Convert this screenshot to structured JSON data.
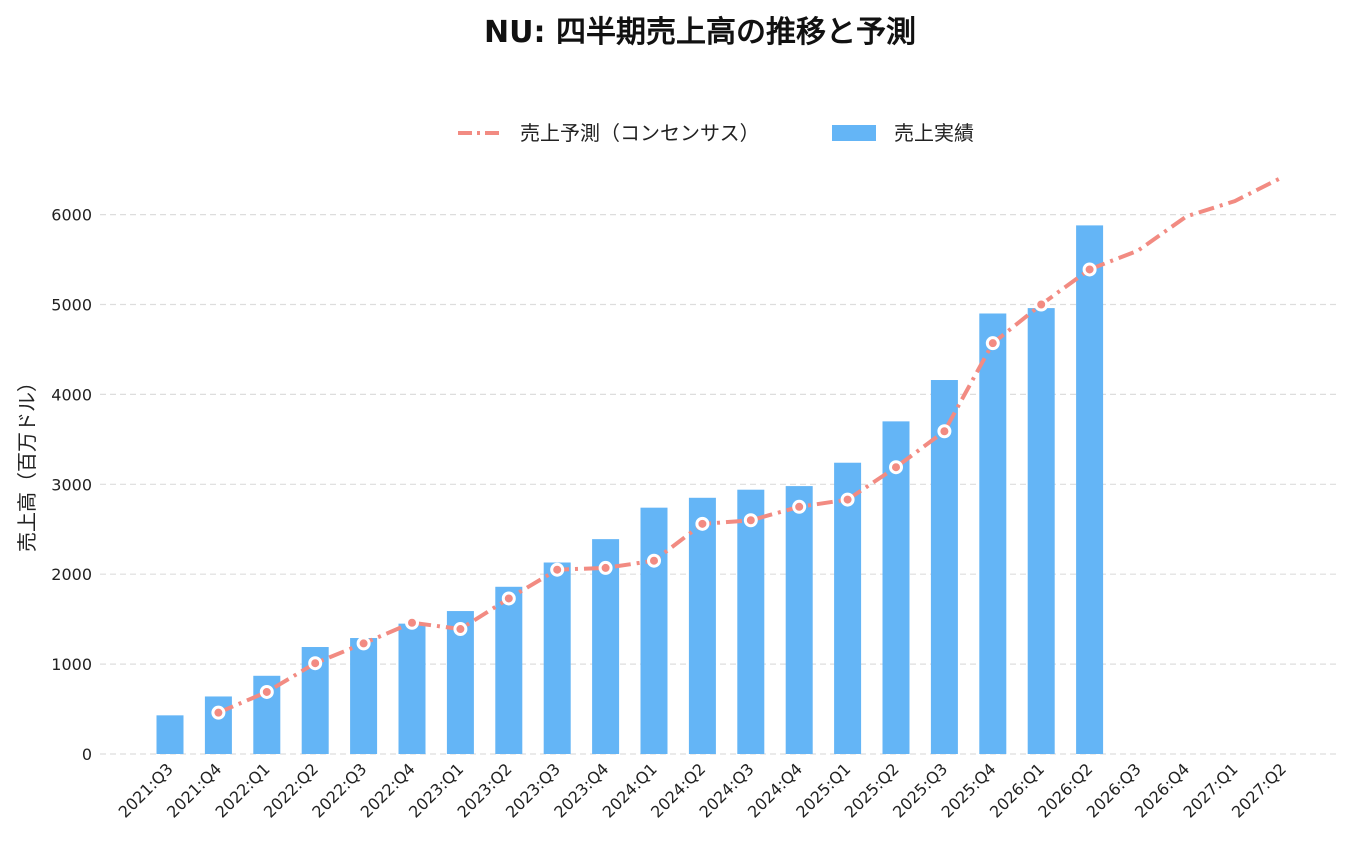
{
  "chart_data": {
    "type": "bar",
    "title": "NU: 四半期売上高の推移と予測",
    "xlabel": "",
    "ylabel": "売上高（百万ドル）",
    "ylim": [
      0,
      6500
    ],
    "yticks": [
      0,
      1000,
      2000,
      3000,
      4000,
      5000,
      6000
    ],
    "grid": true,
    "legend_position": "top-center",
    "categories": [
      "2021:Q3",
      "2021:Q4",
      "2022:Q1",
      "2022:Q2",
      "2022:Q3",
      "2022:Q4",
      "2023:Q1",
      "2023:Q2",
      "2023:Q3",
      "2023:Q4",
      "2024:Q1",
      "2024:Q2",
      "2024:Q3",
      "2024:Q4",
      "2025:Q1",
      "2025:Q2",
      "2025:Q3",
      "2025:Q4",
      "2026:Q1",
      "2026:Q2",
      "2026:Q3",
      "2026:Q4",
      "2027:Q1",
      "2027:Q2"
    ],
    "series": [
      {
        "name": "売上予測（コンセンサス）",
        "type": "line",
        "color": "#F28B82",
        "values": [
          null,
          460,
          690,
          1010,
          1230,
          1460,
          1390,
          1730,
          2050,
          2070,
          2150,
          2560,
          2600,
          2750,
          2830,
          3190,
          3590,
          4570,
          5000,
          5390,
          5600,
          5980,
          6150,
          6420
        ]
      },
      {
        "name": "売上実績",
        "type": "bar",
        "color": "#64B5F6",
        "values": [
          430,
          640,
          870,
          1190,
          1290,
          1450,
          1590,
          1860,
          2130,
          2390,
          2740,
          2850,
          2940,
          2980,
          3240,
          3700,
          4160,
          4900,
          4960,
          5880,
          null,
          null,
          null,
          null
        ]
      }
    ]
  }
}
